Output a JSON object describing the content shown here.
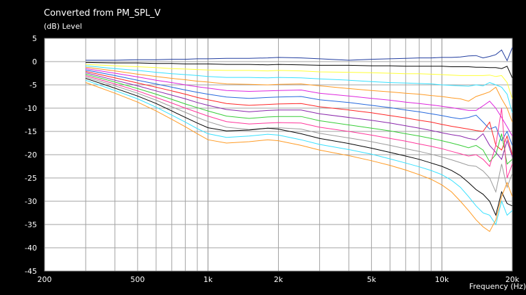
{
  "chart_data": {
    "type": "line",
    "title": "Converted from PM_SPL_V",
    "ylabel": "(dB)  Level",
    "xlabel": "Frequency  (Hz)",
    "x_scale": "log",
    "xlim": [
      200,
      20000
    ],
    "ylim": [
      -45,
      5
    ],
    "x_ticks": [
      {
        "value": 200,
        "label": "200"
      },
      {
        "value": 500,
        "label": "500"
      },
      {
        "value": 1000,
        "label": "1k"
      },
      {
        "value": 2000,
        "label": "2k"
      },
      {
        "value": 5000,
        "label": "5k"
      },
      {
        "value": 10000,
        "label": "10k"
      },
      {
        "value": 20000,
        "label": "20k"
      }
    ],
    "y_ticks": [
      5,
      0,
      -5,
      -10,
      -15,
      -20,
      -25,
      -30,
      -35,
      -40,
      -45
    ],
    "grid": true,
    "background": "#ffffff",
    "x": [
      300,
      400,
      500,
      600,
      700,
      800,
      900,
      1000,
      1200,
      1500,
      1800,
      2000,
      2500,
      3000,
      4000,
      5000,
      6000,
      7000,
      8000,
      9000,
      10000,
      11000,
      12000,
      13000,
      14000,
      15000,
      16000,
      17000,
      18000,
      19000,
      20000
    ],
    "series": [
      {
        "color": "#1e3a9e",
        "values": [
          0.3,
          0.3,
          0.4,
          0.4,
          0.5,
          0.5,
          0.6,
          0.6,
          0.7,
          0.7,
          0.8,
          0.9,
          0.8,
          0.6,
          0.3,
          0.5,
          0.6,
          0.7,
          0.8,
          0.8,
          0.9,
          0.9,
          1.0,
          1.2,
          1.3,
          0.8,
          1.1,
          1.5,
          2.5,
          0.2,
          3.0
        ]
      },
      {
        "color": "#000000",
        "values": [
          -0.2,
          -0.3,
          -0.3,
          -0.4,
          -0.4,
          -0.5,
          -0.5,
          -0.5,
          -0.6,
          -0.6,
          -0.7,
          -0.6,
          -0.7,
          -0.8,
          -0.8,
          -0.9,
          -0.9,
          -1.0,
          -1.0,
          -1.0,
          -1.0,
          -1.1,
          -1.1,
          -1.1,
          -1.2,
          -1.2,
          -1.3,
          -1.3,
          -1.5,
          -1.0,
          -3.5
        ]
      },
      {
        "color": "#ffff33",
        "values": [
          -0.6,
          -0.9,
          -1.1,
          -1.3,
          -1.5,
          -1.6,
          -1.7,
          -1.8,
          -1.9,
          -1.9,
          -2.0,
          -1.9,
          -2.0,
          -2.2,
          -2.3,
          -2.4,
          -2.5,
          -2.6,
          -2.6,
          -2.7,
          -2.8,
          -2.9,
          -3.0,
          -3.0,
          -3.0,
          -3.0,
          -2.9,
          -3.2,
          -3.0,
          -4.5,
          -8.0
        ]
      },
      {
        "color": "#33e0ff",
        "values": [
          -0.9,
          -1.5,
          -1.9,
          -2.3,
          -2.6,
          -2.8,
          -3.0,
          -3.2,
          -3.4,
          -3.4,
          -3.5,
          -3.4,
          -3.5,
          -3.7,
          -4.0,
          -4.3,
          -4.5,
          -4.6,
          -4.7,
          -4.8,
          -5.0,
          -5.1,
          -5.2,
          -5.3,
          -5.0,
          -5.2,
          -4.5,
          -5.0,
          -5.5,
          -7.0,
          -11.0
        ]
      },
      {
        "color": "#ff9920",
        "values": [
          -1.2,
          -2.0,
          -2.7,
          -3.2,
          -3.6,
          -3.9,
          -4.2,
          -4.4,
          -4.8,
          -4.9,
          -5.0,
          -4.9,
          -4.8,
          -5.2,
          -5.8,
          -6.2,
          -6.5,
          -6.8,
          -7.0,
          -7.3,
          -7.5,
          -7.8,
          -8.0,
          -8.5,
          -7.5,
          -7.0,
          -6.5,
          -5.5,
          -8.0,
          -10.0,
          -13.0
        ]
      },
      {
        "color": "#dd22dd",
        "values": [
          -1.5,
          -2.5,
          -3.3,
          -4.0,
          -4.5,
          -5.0,
          -5.4,
          -5.7,
          -6.2,
          -6.4,
          -6.3,
          -6.2,
          -6.1,
          -6.8,
          -7.4,
          -7.9,
          -8.3,
          -8.7,
          -9.0,
          -9.3,
          -9.6,
          -9.9,
          -10.2,
          -10.5,
          -10.5,
          -9.5,
          -8.5,
          -10.0,
          -12.0,
          -14.0,
          -16.0
        ]
      },
      {
        "color": "#2266dd",
        "values": [
          -1.8,
          -3.0,
          -4.0,
          -4.8,
          -5.5,
          -6.1,
          -6.6,
          -7.0,
          -7.6,
          -7.9,
          -7.7,
          -7.6,
          -7.5,
          -8.2,
          -8.8,
          -9.4,
          -9.9,
          -10.4,
          -10.8,
          -11.2,
          -11.6,
          -12.0,
          -12.3,
          -12.0,
          -11.5,
          -13.0,
          -14.5,
          -14.0,
          -17.0,
          -15.0,
          -18.0
        ]
      },
      {
        "color": "#ff2222",
        "values": [
          -2.1,
          -3.5,
          -4.6,
          -5.5,
          -6.3,
          -7.0,
          -7.7,
          -8.2,
          -9.0,
          -9.4,
          -9.2,
          -9.1,
          -9.0,
          -9.7,
          -10.4,
          -11.0,
          -11.6,
          -12.1,
          -12.6,
          -13.0,
          -13.5,
          -13.9,
          -14.2,
          -14.5,
          -14.8,
          -15.0,
          -13.0,
          -18.0,
          -19.0,
          -16.0,
          -20.0
        ]
      },
      {
        "color": "#8822aa",
        "values": [
          -2.4,
          -4.0,
          -5.2,
          -6.3,
          -7.2,
          -8.0,
          -8.8,
          -9.4,
          -10.3,
          -10.8,
          -10.5,
          -10.4,
          -10.4,
          -11.2,
          -12.0,
          -12.6,
          -13.2,
          -13.8,
          -14.3,
          -14.8,
          -15.3,
          -15.7,
          -16.0,
          -16.5,
          -16.8,
          -15.5,
          -18.0,
          -19.5,
          -21.0,
          -17.0,
          -20.5
        ]
      },
      {
        "color": "#33cc33",
        "values": [
          -2.7,
          -4.4,
          -5.8,
          -7.0,
          -8.1,
          -9.1,
          -9.9,
          -10.6,
          -11.7,
          -12.2,
          -11.9,
          -11.8,
          -11.8,
          -12.7,
          -13.6,
          -14.3,
          -14.9,
          -15.5,
          -16.0,
          -16.5,
          -17.0,
          -17.5,
          -18.0,
          -18.5,
          -18.0,
          -19.0,
          -21.5,
          -20.0,
          -15.5,
          -22.0,
          -21.0
        ]
      },
      {
        "color": "#ff3399",
        "values": [
          -3.0,
          -4.8,
          -6.3,
          -7.7,
          -8.9,
          -10.0,
          -10.9,
          -11.7,
          -12.9,
          -13.4,
          -13.2,
          -13.1,
          -13.2,
          -14.1,
          -15.0,
          -15.8,
          -16.5,
          -17.1,
          -17.7,
          -18.2,
          -18.7,
          -19.3,
          -19.8,
          -20.3,
          -20.0,
          -21.0,
          -22.5,
          -18.0,
          -10.0,
          -25.0,
          -22.0
        ]
      },
      {
        "color": "#999999",
        "values": [
          -3.3,
          -5.2,
          -6.8,
          -8.3,
          -9.7,
          -10.9,
          -12.0,
          -12.9,
          -14.1,
          -14.6,
          -14.3,
          -14.2,
          -14.5,
          -15.4,
          -16.4,
          -17.2,
          -18.0,
          -18.7,
          -19.3,
          -19.9,
          -20.5,
          -21.1,
          -21.7,
          -22.3,
          -22.5,
          -23.5,
          -25.0,
          -28.0,
          -22.0,
          -27.0,
          -24.0
        ]
      },
      {
        "color": "#000000",
        "values": [
          -3.6,
          -5.7,
          -7.4,
          -9.0,
          -10.6,
          -12.0,
          -13.2,
          -14.2,
          -14.9,
          -14.7,
          -14.3,
          -14.5,
          -15.5,
          -16.5,
          -17.6,
          -18.6,
          -19.5,
          -20.3,
          -21.0,
          -21.8,
          -22.5,
          -23.4,
          -24.5,
          -26.0,
          -27.5,
          -28.5,
          -30.0,
          -33.0,
          -28.0,
          -30.5,
          -31.0
        ]
      },
      {
        "color": "#33e0ff",
        "values": [
          -4.0,
          -6.2,
          -8.0,
          -9.8,
          -11.5,
          -13.0,
          -14.4,
          -15.5,
          -16.3,
          -16.0,
          -15.6,
          -15.8,
          -16.8,
          -17.8,
          -18.9,
          -19.9,
          -20.9,
          -21.8,
          -22.6,
          -23.4,
          -24.3,
          -25.5,
          -27.0,
          -29.0,
          -31.0,
          -32.5,
          -33.0,
          -35.0,
          -30.0,
          -33.0,
          -32.0
        ]
      },
      {
        "color": "#ff9920",
        "values": [
          -4.5,
          -6.8,
          -8.7,
          -10.6,
          -12.4,
          -14.0,
          -15.5,
          -16.8,
          -17.5,
          -17.2,
          -16.8,
          -17.0,
          -18.0,
          -19.0,
          -20.2,
          -21.3,
          -22.3,
          -23.3,
          -24.3,
          -25.3,
          -26.5,
          -28.0,
          -30.0,
          -32.0,
          -34.0,
          -35.5,
          -36.5,
          -34.0,
          -29.0,
          -26.0,
          -29.0
        ]
      }
    ]
  }
}
